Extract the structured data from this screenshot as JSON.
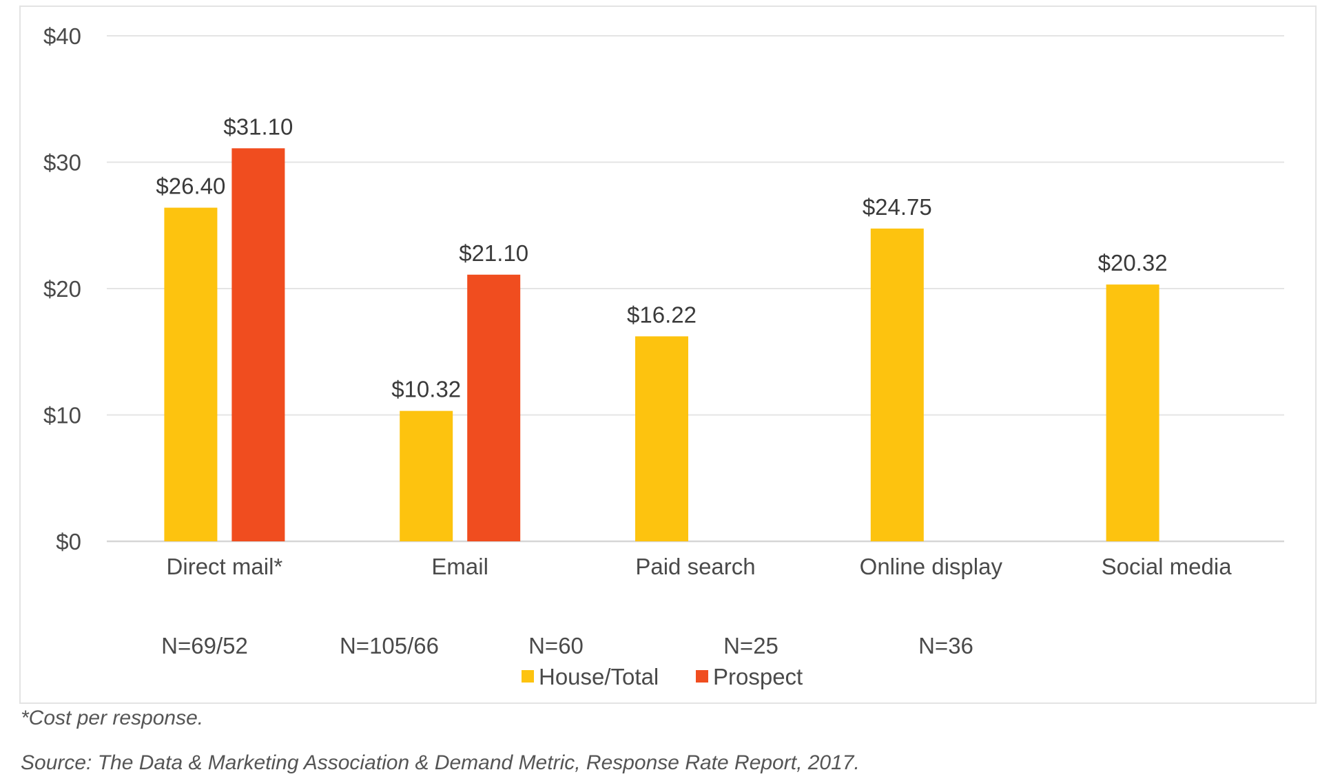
{
  "chart_data": {
    "type": "bar",
    "categories": [
      "Direct mail*",
      "Email",
      "Paid search",
      "Online display",
      "Social media"
    ],
    "series": [
      {
        "name": "House/Total",
        "color": "#FDC30F",
        "values": [
          26.4,
          10.32,
          16.22,
          24.75,
          20.32
        ]
      },
      {
        "name": "Prospect",
        "color": "#F04D1F",
        "values": [
          31.1,
          21.1,
          null,
          null,
          null
        ]
      }
    ],
    "data_labels": {
      "House/Total": [
        "$26.40",
        "$10.32",
        "$16.22",
        "$24.75",
        "$20.32"
      ],
      "Prospect": [
        "$31.10",
        "$21.10",
        null,
        null,
        null
      ]
    },
    "ylim": [
      0,
      40
    ],
    "yticks": [
      0,
      10,
      20,
      30,
      40
    ],
    "ytick_labels": [
      "$0",
      "$10",
      "$20",
      "$30",
      "$40"
    ],
    "sample_sizes": [
      "N=69/52",
      "N=105/66",
      "N=60",
      "N=25",
      "N=36"
    ],
    "grid": true,
    "legend_position": "bottom",
    "xlabel": "",
    "ylabel": "",
    "title": ""
  },
  "notes": {
    "footnote": "*Cost per response.",
    "source": "Source: The Data & Marketing Association & Demand Metric, Response Rate Report, 2017."
  }
}
